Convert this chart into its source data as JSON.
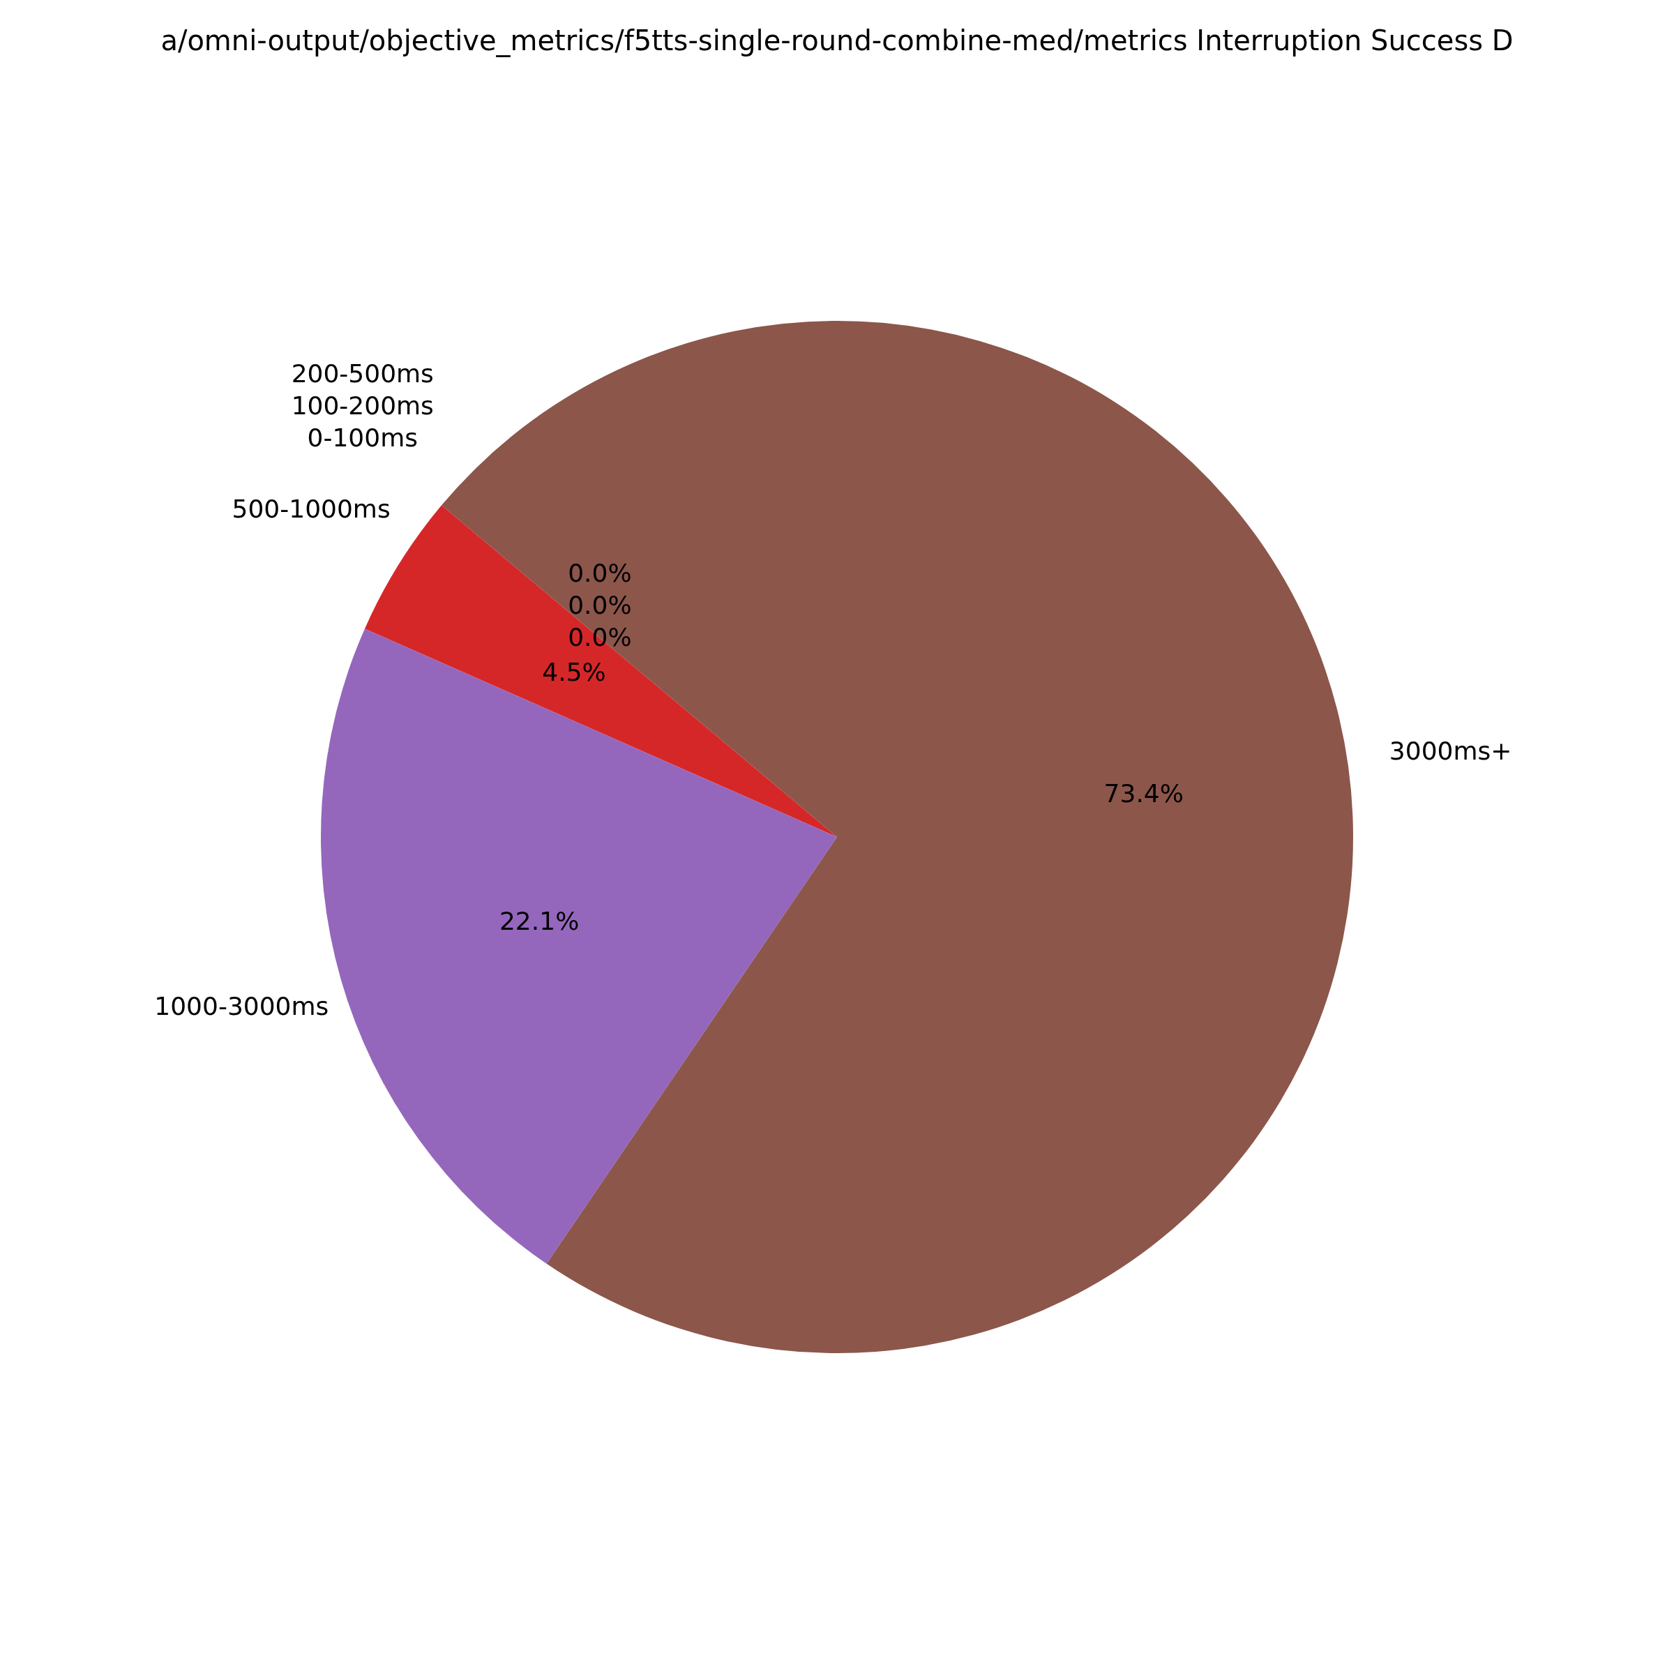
{
  "chart_data": {
    "type": "pie",
    "title": "a/omni-output/objective_metrics/f5tts-single-round-combine-med/metrics Interruption Success D",
    "categories": [
      "0-100ms",
      "100-200ms",
      "200-500ms",
      "500-1000ms",
      "1000-3000ms",
      "3000ms+"
    ],
    "values": [
      0.0,
      0.0,
      0.0,
      4.5,
      22.1,
      73.4
    ],
    "value_labels": [
      "0.0%",
      "0.0%",
      "0.0%",
      "4.5%",
      "22.1%",
      "73.4%"
    ],
    "colors": [
      "#1f77b4",
      "#ff7f0e",
      "#2ca02c",
      "#d62728",
      "#9467bd",
      "#8c564b"
    ]
  }
}
